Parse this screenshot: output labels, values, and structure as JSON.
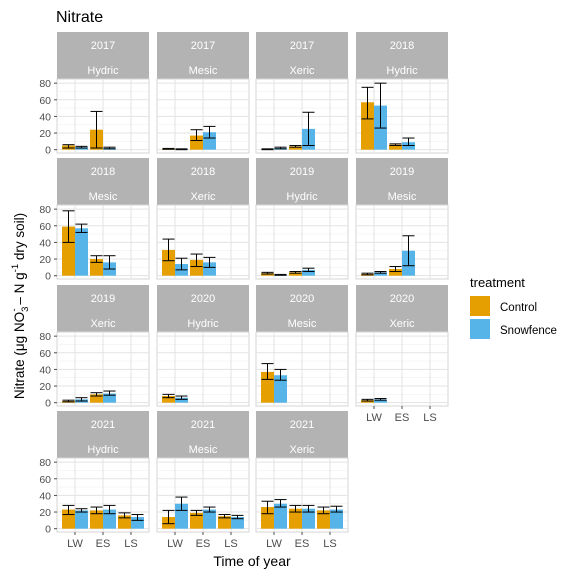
{
  "chart_data": {
    "type": "bar",
    "title": "Nitrate",
    "xlabel": "Time of year",
    "ylabel": {
      "prefix": "Nitrate (μg NO",
      "sub1": "3",
      "sup1": "-",
      "middle": " – N g",
      "sup2": "-1",
      "suffix": " dry soil)"
    },
    "categories": [
      "LW",
      "ES",
      "LS"
    ],
    "y_ticks": [
      0,
      20,
      40,
      60,
      80
    ],
    "ylim": [
      -4,
      85
    ],
    "grid": true,
    "legend": {
      "title": "treatment",
      "placement": "right"
    },
    "series": [
      {
        "name": "Control",
        "color": "#E69F00"
      },
      {
        "name": "Snowfence",
        "color": "#56B4E9"
      }
    ],
    "panels": [
      {
        "year": "2017",
        "site": "Hydric",
        "values": {
          "LW": {
            "Control": [
              5,
              2,
              6
            ],
            "Snowfence": [
              3,
              2,
              4
            ]
          },
          "ES": {
            "Control": [
              24,
              2,
              46
            ],
            "Snowfence": [
              2,
              1,
              3
            ]
          }
        }
      },
      {
        "year": "2017",
        "site": "Mesic",
        "values": {
          "LW": {
            "Control": [
              1,
              0.5,
              1.5
            ],
            "Snowfence": [
              0.5,
              0,
              1
            ]
          },
          "ES": {
            "Control": [
              17,
              11,
              24
            ],
            "Snowfence": [
              21,
              14,
              28
            ]
          }
        }
      },
      {
        "year": "2017",
        "site": "Xeric",
        "values": {
          "LW": {
            "Control": [
              0.5,
              0,
              1
            ],
            "Snowfence": [
              2,
              1,
              3
            ]
          },
          "ES": {
            "Control": [
              4,
              3,
              5
            ],
            "Snowfence": [
              25,
              5,
              45
            ]
          }
        }
      },
      {
        "year": "2018",
        "site": "Hydric",
        "values": {
          "LW": {
            "Control": [
              57,
              37,
              75
            ],
            "Snowfence": [
              53,
              26,
              80
            ]
          },
          "ES": {
            "Control": [
              6,
              5,
              7
            ],
            "Snowfence": [
              9,
              5,
              14
            ]
          }
        }
      },
      {
        "year": "2018",
        "site": "Mesic",
        "values": {
          "LW": {
            "Control": [
              59,
              40,
              78
            ],
            "Snowfence": [
              57,
              52,
              62
            ]
          },
          "ES": {
            "Control": [
              20,
              16,
              24
            ],
            "Snowfence": [
              16,
              8,
              24
            ]
          }
        }
      },
      {
        "year": "2018",
        "site": "Xeric",
        "values": {
          "LW": {
            "Control": [
              31,
              18,
              44
            ],
            "Snowfence": [
              14,
              7,
              21
            ]
          },
          "ES": {
            "Control": [
              19,
              11,
              26
            ],
            "Snowfence": [
              16,
              10,
              22
            ]
          }
        }
      },
      {
        "year": "2019",
        "site": "Hydric",
        "values": {
          "LW": {
            "Control": [
              3,
              2,
              4
            ],
            "Snowfence": [
              1,
              0.5,
              1.5
            ]
          },
          "ES": {
            "Control": [
              4,
              3,
              5
            ],
            "Snowfence": [
              7,
              5,
              9
            ]
          }
        }
      },
      {
        "year": "2019",
        "site": "Mesic",
        "values": {
          "LW": {
            "Control": [
              2,
              1,
              3
            ],
            "Snowfence": [
              4,
              3,
              5
            ]
          },
          "ES": {
            "Control": [
              8,
              5,
              11
            ],
            "Snowfence": [
              30,
              12,
              48
            ]
          }
        }
      },
      {
        "year": "2019",
        "site": "Xeric",
        "values": {
          "LW": {
            "Control": [
              2,
              1,
              3
            ],
            "Snowfence": [
              4,
              2,
              6
            ]
          },
          "ES": {
            "Control": [
              10,
              8,
              12
            ],
            "Snowfence": [
              11,
              9,
              14
            ]
          }
        }
      },
      {
        "year": "2020",
        "site": "Hydric",
        "values": {
          "LW": {
            "Control": [
              8,
              6,
              10
            ],
            "Snowfence": [
              6,
              4,
              8
            ]
          }
        }
      },
      {
        "year": "2020",
        "site": "Mesic",
        "values": {
          "LW": {
            "Control": [
              37,
              28,
              47
            ],
            "Snowfence": [
              33,
              27,
              40
            ]
          }
        }
      },
      {
        "year": "2020",
        "site": "Xeric",
        "values": {
          "LW": {
            "Control": [
              3,
              2,
              4
            ],
            "Snowfence": [
              4,
              3,
              5
            ]
          }
        }
      },
      {
        "year": "2021",
        "site": "Hydric",
        "values": {
          "LW": {
            "Control": [
              23,
              17,
              28
            ],
            "Snowfence": [
              22,
              20,
              24
            ]
          },
          "ES": {
            "Control": [
              22,
              18,
              26
            ],
            "Snowfence": [
              23,
              18,
              28
            ]
          },
          "LS": {
            "Control": [
              16,
              13,
              19
            ],
            "Snowfence": [
              14,
              10,
              17
            ]
          }
        }
      },
      {
        "year": "2021",
        "site": "Mesic",
        "values": {
          "LW": {
            "Control": [
              14,
              6,
              22
            ],
            "Snowfence": [
              30,
              22,
              38
            ]
          },
          "ES": {
            "Control": [
              19,
              16,
              22
            ],
            "Snowfence": [
              23,
              20,
              26
            ]
          },
          "LS": {
            "Control": [
              15,
              13,
              17
            ],
            "Snowfence": [
              14,
              12,
              16
            ]
          }
        }
      },
      {
        "year": "2021",
        "site": "Xeric",
        "values": {
          "LW": {
            "Control": [
              26,
              18,
              33
            ],
            "Snowfence": [
              30,
              26,
              35
            ]
          },
          "ES": {
            "Control": [
              24,
              20,
              28
            ],
            "Snowfence": [
              24,
              20,
              28
            ]
          },
          "LS": {
            "Control": [
              22,
              18,
              26
            ],
            "Snowfence": [
              23,
              20,
              27
            ]
          }
        }
      }
    ]
  }
}
